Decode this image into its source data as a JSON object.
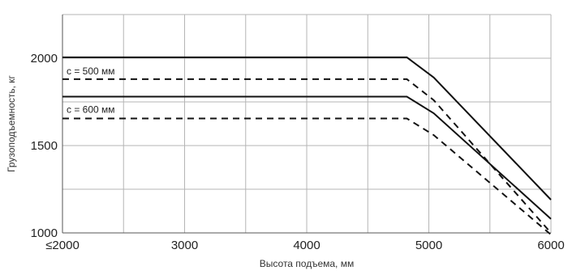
{
  "chart_data": {
    "type": "line",
    "title": "",
    "xlabel": "Высота подъема, мм",
    "ylabel": "Грузоподъемность, кг",
    "xlim": [
      2000,
      6000
    ],
    "ylim": [
      1000,
      2250
    ],
    "x_ticks": [
      2000,
      3000,
      4000,
      5000,
      6000
    ],
    "x_tick_labels": [
      "≤2000",
      "3000",
      "4000",
      "5000",
      "6000"
    ],
    "x_grid": [
      2000,
      2500,
      3000,
      3500,
      4000,
      4500,
      5000,
      5500,
      6000
    ],
    "y_ticks": [
      1000,
      1500,
      2000
    ],
    "y_tick_labels": [
      "1000",
      "1500",
      "2000"
    ],
    "y_grid": [
      1000,
      1250,
      1500,
      1750,
      2000,
      2250
    ],
    "grid": true,
    "legend": "none",
    "annotations": [
      {
        "text": "c = 500 мм",
        "x": 2020,
        "y": 1925
      },
      {
        "text": "c = 600 мм",
        "x": 2020,
        "y": 1705
      }
    ],
    "series": [
      {
        "style": "solid",
        "x": [
          2000,
          4820,
          5040,
          6000
        ],
        "y": [
          2005,
          2005,
          1890,
          1190
        ]
      },
      {
        "style": "dashed",
        "x": [
          2000,
          4820,
          5040,
          6000
        ],
        "y": [
          1880,
          1880,
          1760,
          1000
        ]
      },
      {
        "style": "solid",
        "x": [
          2000,
          4820,
          5040,
          6000
        ],
        "y": [
          1780,
          1780,
          1685,
          1080
        ]
      },
      {
        "style": "dashed",
        "x": [
          2000,
          4820,
          5040,
          6000
        ],
        "y": [
          1655,
          1655,
          1560,
          990
        ]
      }
    ]
  }
}
